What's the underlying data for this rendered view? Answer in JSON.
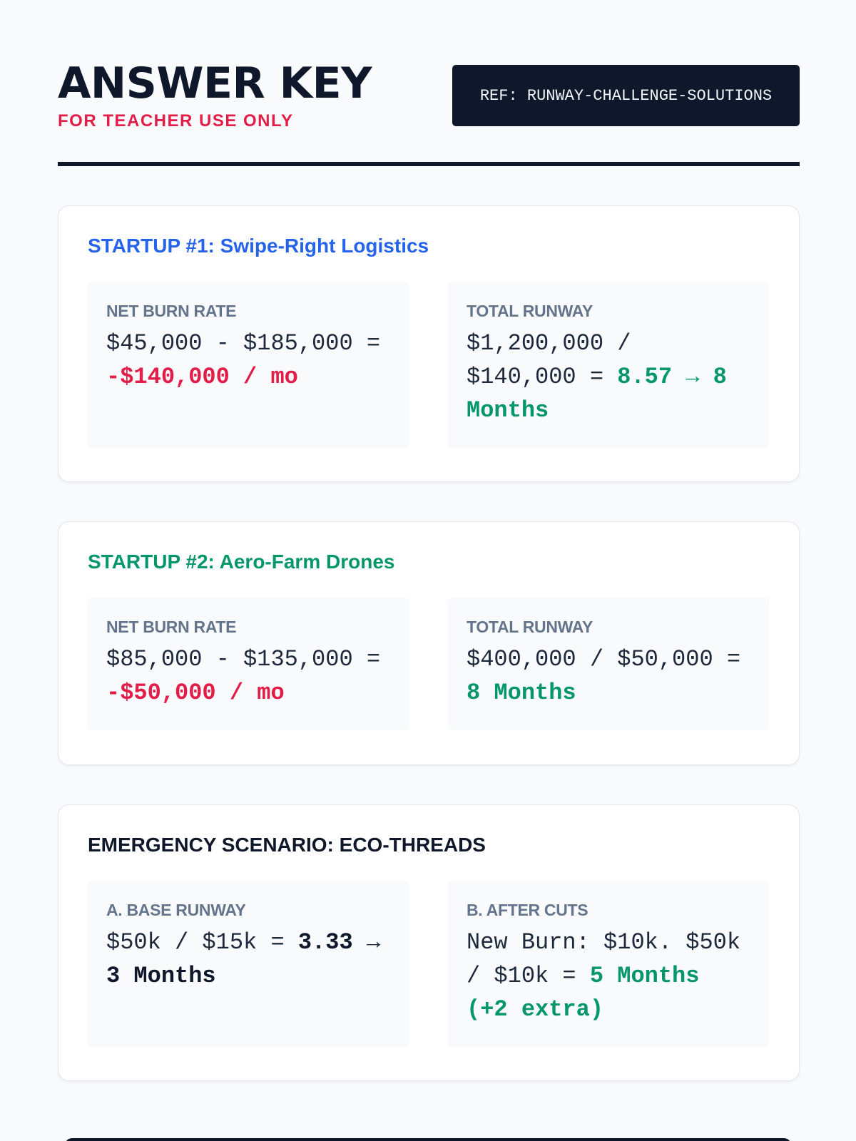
{
  "header": {
    "title": "ANSWER KEY",
    "subtitle": "FOR TEACHER USE ONLY",
    "ref": "REF: RUNWAY-CHALLENGE-SOLUTIONS"
  },
  "colors": {
    "red": "#e11d48",
    "green": "#059669",
    "blue": "#2563eb",
    "dark": "#0f172a"
  },
  "cards": [
    {
      "title": "STARTUP #1: Swipe-Right Logistics",
      "left": {
        "label": "NET BURN RATE",
        "text": "$45,000 - $185,000 = ",
        "result": "-$140,000 / mo"
      },
      "right": {
        "label": "TOTAL RUNWAY",
        "text": "$1,200,000 / $140,000 = ",
        "result": "8.57 → 8 Months"
      }
    },
    {
      "title": "STARTUP #2: Aero-Farm Drones",
      "left": {
        "label": "NET BURN RATE",
        "text": "$85,000 - $135,000 = ",
        "result": "-$50,000 / mo"
      },
      "right": {
        "label": "TOTAL RUNWAY",
        "text": "$400,000 / $50,000 = ",
        "result": "8 Months"
      }
    },
    {
      "title": "EMERGENCY SCENARIO: ECO-THREADS",
      "left": {
        "label": "A. BASE RUNWAY",
        "text": "$50k / $15k = ",
        "result": "3.33",
        "text2": " → ",
        "result2": "3 Months"
      },
      "right": {
        "label": "B. AFTER CUTS",
        "text": "New Burn: $10k. $50k / $10k = ",
        "result": "5 Months (+2 extra)"
      }
    }
  ]
}
